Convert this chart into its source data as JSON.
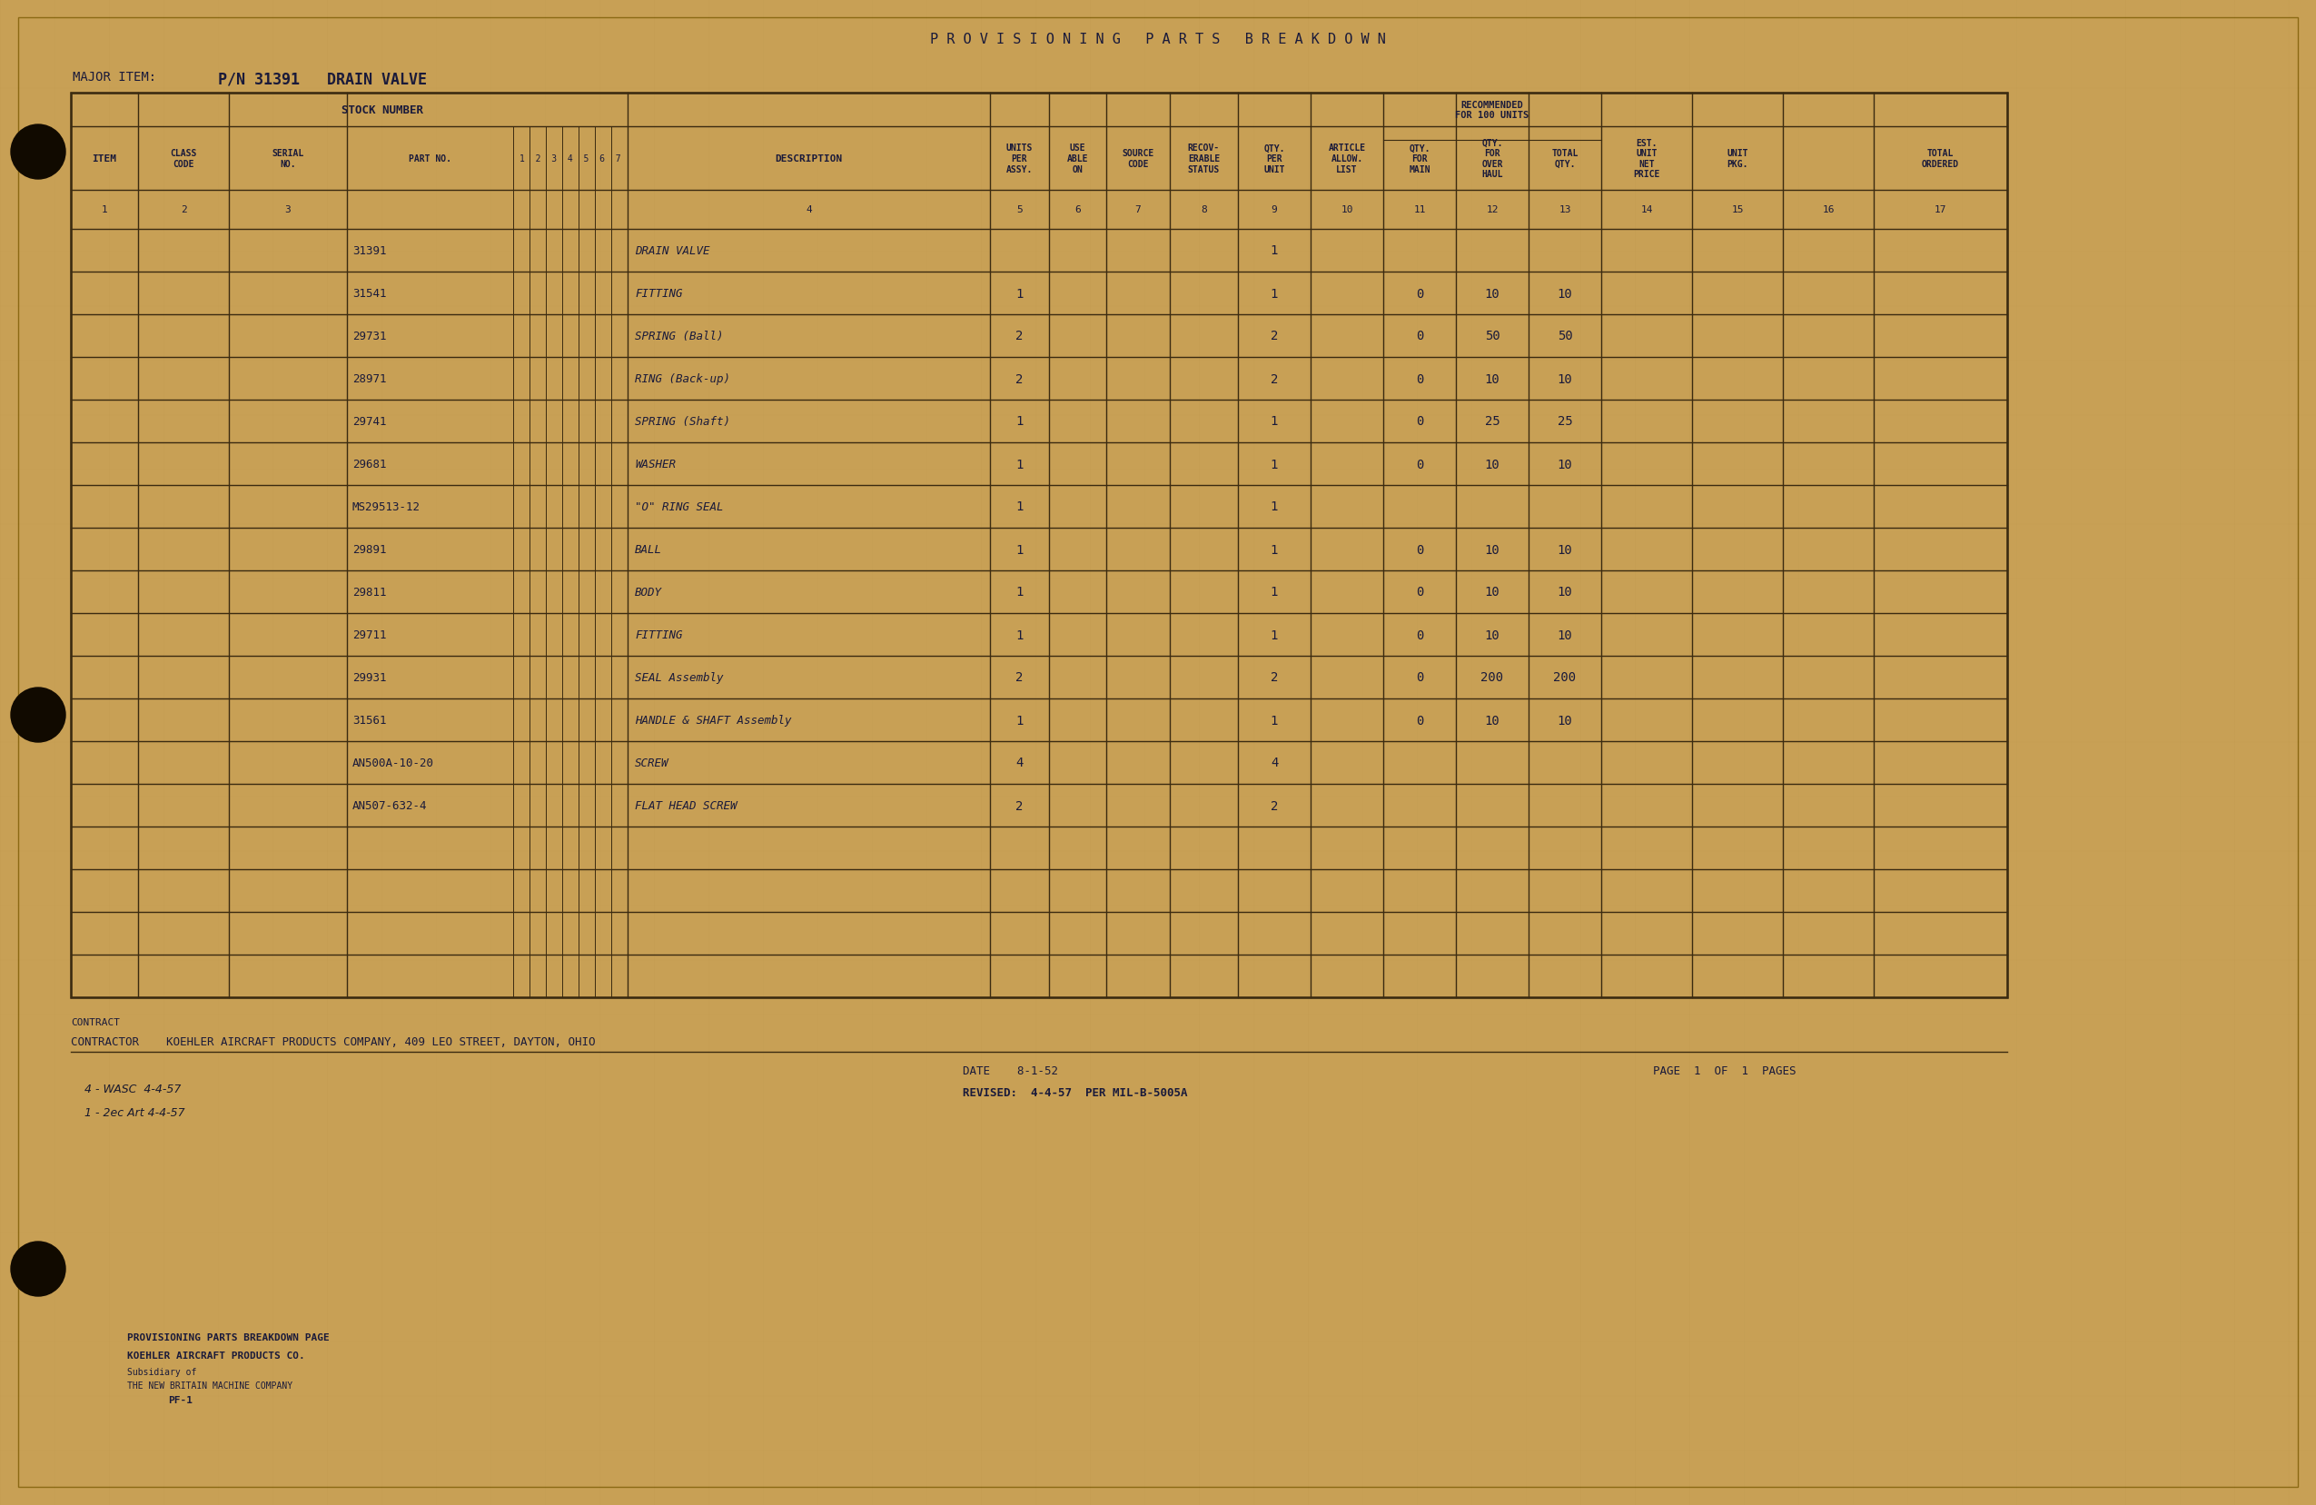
{
  "bg_color": "#c8a055",
  "title": "P R O V I S I O N I N G   P A R T S   B R E A K D O W N",
  "major_item_label": "MAJOR ITEM:",
  "major_item_value": "P/N 31391   DRAIN VALVE",
  "rows": [
    {
      "part": "31391",
      "desc": "DRAIN VALVE",
      "units": "",
      "qty_per": "1",
      "qty_main": "",
      "qty_over": "",
      "total_qty": ""
    },
    {
      "part": "31541",
      "desc": "FITTING",
      "units": "1",
      "qty_per": "1",
      "qty_main": "0",
      "qty_over": "10",
      "total_qty": "10"
    },
    {
      "part": "29731",
      "desc": "SPRING (Ball)",
      "units": "2",
      "qty_per": "2",
      "qty_main": "0",
      "qty_over": "50",
      "total_qty": "50"
    },
    {
      "part": "28971",
      "desc": "RING (Back-up)",
      "units": "2",
      "qty_per": "2",
      "qty_main": "0",
      "qty_over": "10",
      "total_qty": "10"
    },
    {
      "part": "29741",
      "desc": "SPRING (Shaft)",
      "units": "1",
      "qty_per": "1",
      "qty_main": "0",
      "qty_over": "25",
      "total_qty": "25"
    },
    {
      "part": "29681",
      "desc": "WASHER",
      "units": "1",
      "qty_per": "1",
      "qty_main": "0",
      "qty_over": "10",
      "total_qty": "10"
    },
    {
      "part": "MS29513-12",
      "desc": "\"O\" RING SEAL",
      "units": "1",
      "qty_per": "1",
      "qty_main": "",
      "qty_over": "",
      "total_qty": ""
    },
    {
      "part": "29891",
      "desc": "BALL",
      "units": "1",
      "qty_per": "1",
      "qty_main": "0",
      "qty_over": "10",
      "total_qty": "10"
    },
    {
      "part": "29811",
      "desc": "BODY",
      "units": "1",
      "qty_per": "1",
      "qty_main": "0",
      "qty_over": "10",
      "total_qty": "10"
    },
    {
      "part": "29711",
      "desc": "FITTING",
      "units": "1",
      "qty_per": "1",
      "qty_main": "0",
      "qty_over": "10",
      "total_qty": "10"
    },
    {
      "part": "29931",
      "desc": "SEAL Assembly",
      "units": "2",
      "qty_per": "2",
      "qty_main": "0",
      "qty_over": "200",
      "total_qty": "200"
    },
    {
      "part": "31561",
      "desc": "HANDLE & SHAFT Assembly",
      "units": "1",
      "qty_per": "1",
      "qty_main": "0",
      "qty_over": "10",
      "total_qty": "10"
    },
    {
      "part": "AN500A-10-20",
      "desc": "SCREW",
      "units": "4",
      "qty_per": "4",
      "qty_main": "",
      "qty_over": "",
      "total_qty": ""
    },
    {
      "part": "AN507-632-4",
      "desc": "FLAT HEAD SCREW",
      "units": "2",
      "qty_per": "2",
      "qty_main": "",
      "qty_over": "",
      "total_qty": ""
    }
  ],
  "contract": "CONTRACT",
  "contractor": "CONTRACTOR    KOEHLER AIRCRAFT PRODUCTS COMPANY, 409 LEO STREET, DAYTON, OHIO",
  "date_str": "DATE    8-1-52",
  "page_str": "PAGE  1  OF  1  PAGES",
  "revised_str": "REVISED:  4-4-57  PER MIL-B-5005A",
  "handwritten1": "4 - WASC  4-4-57",
  "handwritten2": "1 - 2ec Art 4-4-57",
  "footer1": "PROVISIONING PARTS BREAKDOWN PAGE",
  "footer2": "KOEHLER AIRCRAFT PRODUCTS CO.",
  "footer3": "Subsidiary of",
  "footer4": "THE NEW BRITAIN MACHINE COMPANY",
  "footer5": "PF-1",
  "ink_color": "#1a1a3a",
  "line_color": "#3a2a10"
}
